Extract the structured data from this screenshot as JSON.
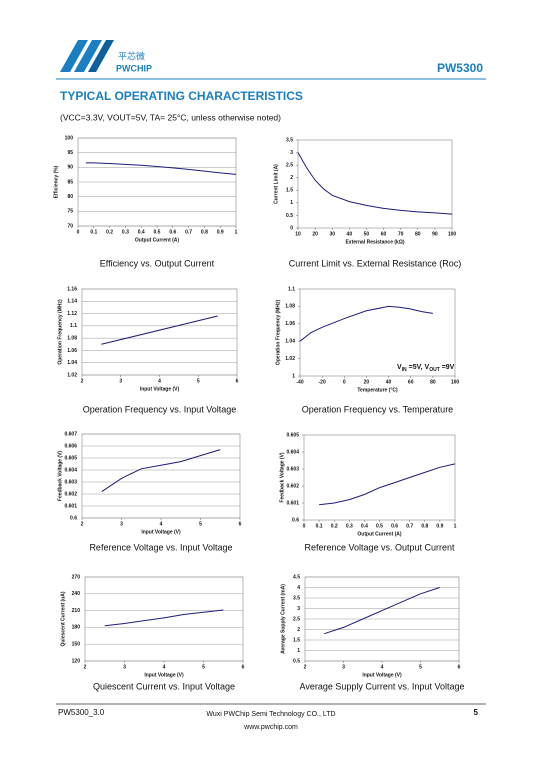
{
  "header": {
    "logo_cn": "平芯微",
    "logo_en": "PWCHIP",
    "part": "PW5300"
  },
  "section_title": "TYPICAL OPERATING CHARACTERISTICS",
  "conditions": "(VCC=3.3V, VOUT=5V, TA= 25°C, unless otherwise noted)",
  "chart_data": [
    {
      "type": "line",
      "title": "Efficiency vs. Output Current",
      "x_label": "Output Current (A)",
      "y_label": "Efficiency (%)",
      "x": [
        0.05,
        0.1,
        0.2,
        0.3,
        0.4,
        0.5,
        0.6,
        0.7,
        0.8,
        0.9,
        1
      ],
      "values": [
        91.5,
        91.5,
        91.3,
        91,
        90.7,
        90.3,
        89.8,
        89.3,
        88.7,
        88.1,
        87.6
      ],
      "color": "#1c1c78",
      "xlim": [
        0,
        1
      ],
      "xticks": [
        0,
        0.1,
        0.2,
        0.3,
        0.4,
        0.5,
        0.6,
        0.7,
        0.8,
        0.9,
        1
      ],
      "ylim": [
        70,
        100
      ],
      "yticks": [
        70,
        75,
        80,
        85,
        90,
        95,
        100
      ],
      "grid": true
    },
    {
      "type": "line",
      "title": "Current Limit vs. External Resistance (Roc)",
      "x_label": "External Resistance (kΩ)",
      "y_label": "Current Limit (A)",
      "x": [
        10,
        15,
        20,
        25,
        30,
        40,
        50,
        60,
        70,
        80,
        90,
        100
      ],
      "values": [
        3.0,
        2.4,
        1.9,
        1.55,
        1.3,
        1.05,
        0.9,
        0.78,
        0.7,
        0.64,
        0.6,
        0.55
      ],
      "color": "#1c1c78",
      "xlim": [
        10,
        100
      ],
      "xticks": [
        10,
        20,
        30,
        40,
        50,
        60,
        70,
        80,
        90,
        100
      ],
      "ylim": [
        0,
        3.5
      ],
      "yticks": [
        0,
        0.5,
        1,
        1.5,
        2,
        2.5,
        3,
        3.5
      ],
      "grid": false
    },
    {
      "type": "line",
      "title": "Operation Frequency vs. Input Voltage",
      "x_label": "Input Voltage (V)",
      "y_label": "Operation Frequency (MHz)",
      "x": [
        2.5,
        5.5
      ],
      "values": [
        1.07,
        1.116
      ],
      "color": "#1c1c78",
      "xlim": [
        2,
        6
      ],
      "xticks": [
        2,
        3,
        4,
        5,
        6
      ],
      "ylim": [
        1.02,
        1.16
      ],
      "yticks": [
        1.02,
        1.04,
        1.06,
        1.08,
        1.1,
        1.12,
        1.14,
        1.16
      ],
      "grid": true
    },
    {
      "type": "line",
      "title": "Operation Frequency vs. Temperature",
      "x_label": "Temperature (°C)",
      "y_label": "Operation Frequency (MHz)",
      "x": [
        -40,
        -30,
        -20,
        0,
        20,
        40,
        50,
        60,
        70,
        80
      ],
      "values": [
        1.04,
        1.05,
        1.056,
        1.066,
        1.075,
        1.08,
        1.079,
        1.077,
        1.074,
        1.072
      ],
      "color": "#1c1c78",
      "xlim": [
        -40,
        100
      ],
      "xticks": [
        -40,
        -20,
        0,
        20,
        40,
        60,
        80,
        100
      ],
      "ylim": [
        1,
        1.1
      ],
      "yticks": [
        1,
        1.02,
        1.04,
        1.06,
        1.08,
        1.1
      ],
      "grid": false,
      "annotation": [
        "V",
        "IN",
        " =5V, V",
        "OUT",
        " =9V"
      ]
    },
    {
      "type": "line",
      "title": "Reference Voltage vs. Input Voltage",
      "x_label": "Input Voltage (V)",
      "y_label": "Feedback Voltage (V)",
      "x": [
        2.5,
        3,
        3.5,
        4,
        4.5,
        5,
        5.5
      ],
      "values": [
        0.6022,
        0.6033,
        0.6041,
        0.6044,
        0.6047,
        0.6052,
        0.6057
      ],
      "color": "#1c1c78",
      "xlim": [
        2,
        6
      ],
      "xticks": [
        2,
        3,
        4,
        5,
        6
      ],
      "ylim": [
        0.6,
        0.607
      ],
      "yticks": [
        0.6,
        0.601,
        0.602,
        0.603,
        0.604,
        0.605,
        0.606,
        0.607
      ],
      "grid": true
    },
    {
      "type": "line",
      "title": "Reference Voltage vs. Output Current",
      "x_label": "Output Current (A)",
      "y_label": "Feedback Voltage (V)",
      "x": [
        0.1,
        0.2,
        0.3,
        0.4,
        0.5,
        0.6,
        0.7,
        0.8,
        0.9,
        1
      ],
      "values": [
        0.6009,
        0.601,
        0.6012,
        0.6015,
        0.6019,
        0.6022,
        0.6025,
        0.6028,
        0.6031,
        0.6033
      ],
      "color": "#1c1c78",
      "xlim": [
        0,
        1
      ],
      "xticks": [
        0,
        0.1,
        0.2,
        0.3,
        0.4,
        0.5,
        0.6,
        0.7,
        0.8,
        0.9,
        1
      ],
      "ylim": [
        0.6,
        0.605
      ],
      "yticks": [
        0.6,
        0.601,
        0.602,
        0.603,
        0.604,
        0.605
      ],
      "grid": false
    },
    {
      "type": "line",
      "title": "Quiescent Current vs. Input Voltage",
      "x_label": "Input Voltage (V)",
      "y_label": "Quiescent Current (uA)",
      "x": [
        2.5,
        3,
        3.5,
        4,
        4.5,
        5,
        5.5
      ],
      "values": [
        183,
        187,
        192,
        197,
        203,
        207,
        211
      ],
      "color": "#1c1c78",
      "xlim": [
        2,
        6
      ],
      "xticks": [
        2,
        3,
        4,
        5,
        6
      ],
      "ylim": [
        120,
        270
      ],
      "yticks": [
        120,
        150,
        180,
        210,
        240,
        270
      ],
      "grid": true
    },
    {
      "type": "line",
      "title": "Average Supply Current vs. Input Voltage",
      "x_label": "Input Voltage (V)",
      "y_label": "Average Supply Current (mA)",
      "x": [
        2.5,
        3,
        3.5,
        4,
        4.5,
        5,
        5.5
      ],
      "values": [
        1.8,
        2.1,
        2.5,
        2.9,
        3.3,
        3.7,
        4.0
      ],
      "color": "#1c1c78",
      "xlim": [
        2,
        6
      ],
      "xticks": [
        2,
        3,
        4,
        5,
        6
      ],
      "ylim": [
        0.5,
        4.5
      ],
      "yticks": [
        0.5,
        1,
        1.5,
        2,
        2.5,
        3,
        3.5,
        4,
        4.5
      ],
      "grid": true
    }
  ],
  "footer": {
    "doc": "PW5300_3.0",
    "company": "Wuxi PWChip Semi Technology CO., LTD",
    "url": "www.pwchip.com",
    "page": "5"
  }
}
